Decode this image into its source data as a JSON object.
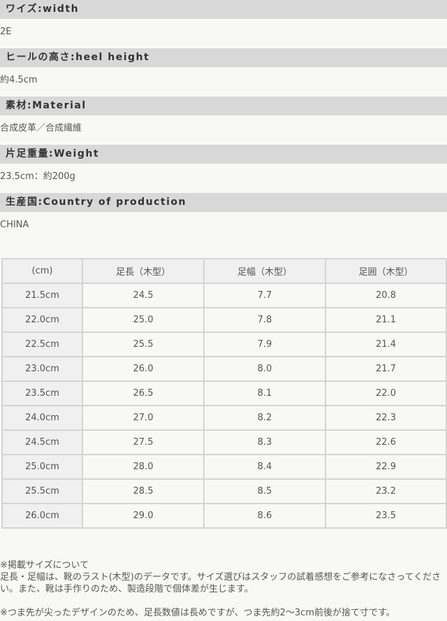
{
  "specs": [
    {
      "label": "ワイズ:width",
      "value": "2E"
    },
    {
      "label": "ヒールの高さ:heel height",
      "value": "約4.5cm"
    },
    {
      "label": "素材:Material",
      "value": "合成皮革／合成繊維"
    },
    {
      "label": "片足重量:Weight",
      "value": "23.5cm：約200g"
    },
    {
      "label": "生産国:Country of production",
      "value": "CHINA"
    }
  ],
  "size_table": {
    "headers": [
      "(cm)",
      "足長（木型）",
      "足幅（木型）",
      "足囲（木型）"
    ],
    "rows": [
      [
        "21.5cm",
        "24.5",
        "7.7",
        "20.8"
      ],
      [
        "22.0cm",
        "25.0",
        "7.8",
        "21.1"
      ],
      [
        "22.5cm",
        "25.5",
        "7.9",
        "21.4"
      ],
      [
        "23.0cm",
        "26.0",
        "8.0",
        "21.7"
      ],
      [
        "23.5cm",
        "26.5",
        "8.1",
        "22.0"
      ],
      [
        "24.0cm",
        "27.0",
        "8.2",
        "22.3"
      ],
      [
        "24.5cm",
        "27.5",
        "8.3",
        "22.6"
      ],
      [
        "25.0cm",
        "28.0",
        "8.4",
        "22.9"
      ],
      [
        "25.5cm",
        "28.5",
        "8.5",
        "23.2"
      ],
      [
        "26.0cm",
        "29.0",
        "8.6",
        "23.5"
      ]
    ]
  },
  "notes": {
    "title": "※掲載サイズについて",
    "line1": "足長・足幅は、靴のラスト(木型)のデータです。サイズ選びはスタッフの試着感想をご参考になさってください。また、靴は手作りのため、製造段階で個体差が生じます。",
    "line2": "※つま先が尖ったデザインのため、足長数値は長めですが、つま先約2〜3cm前後が捨て寸です。"
  }
}
